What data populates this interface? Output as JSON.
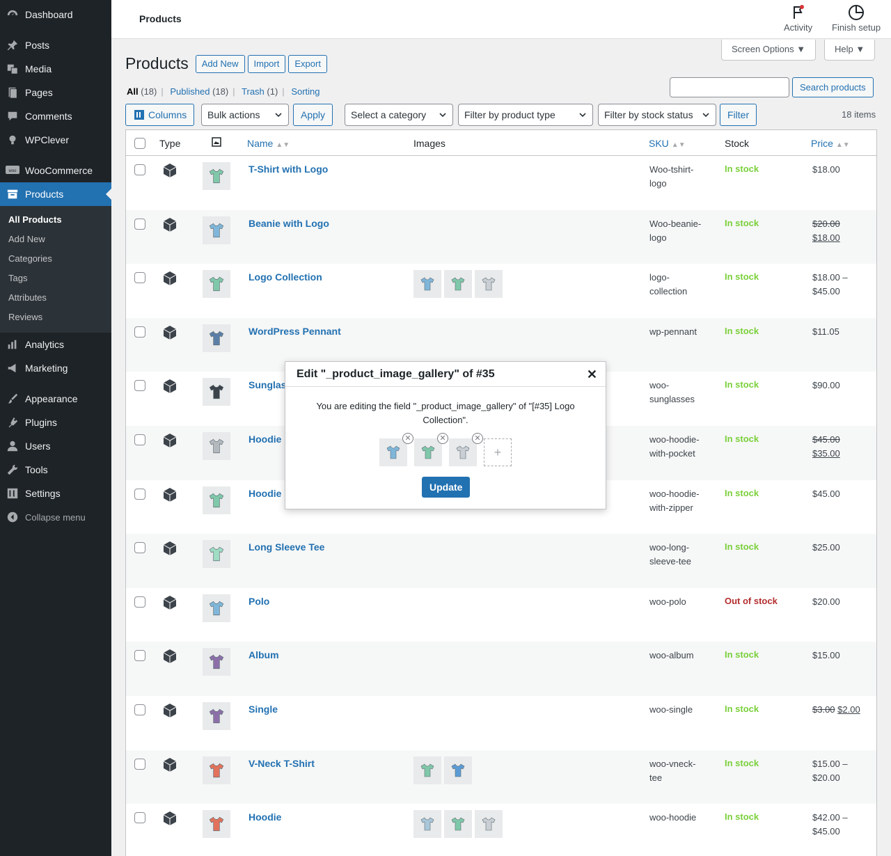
{
  "sidebar": {
    "items_top": [
      {
        "label": "Dashboard",
        "icon": "dashboard-icon"
      },
      {
        "label": "Posts",
        "icon": "pin-icon"
      },
      {
        "label": "Media",
        "icon": "media-icon"
      },
      {
        "label": "Pages",
        "icon": "pages-icon"
      },
      {
        "label": "Comments",
        "icon": "comments-icon"
      },
      {
        "label": "WPClever",
        "icon": "bulb-icon"
      },
      {
        "label": "WooCommerce",
        "icon": "woo-icon"
      },
      {
        "label": "Products",
        "icon": "archive-icon"
      }
    ],
    "submenu": [
      "All Products",
      "Add New",
      "Categories",
      "Tags",
      "Attributes",
      "Reviews"
    ],
    "items_bottom": [
      {
        "label": "Analytics",
        "icon": "chart-icon"
      },
      {
        "label": "Marketing",
        "icon": "megaphone-icon"
      },
      {
        "label": "Appearance",
        "icon": "brush-icon"
      },
      {
        "label": "Plugins",
        "icon": "plug-icon"
      },
      {
        "label": "Users",
        "icon": "user-icon"
      },
      {
        "label": "Tools",
        "icon": "wrench-icon"
      },
      {
        "label": "Settings",
        "icon": "settings-icon"
      }
    ],
    "collapse": "Collapse menu"
  },
  "topbar": {
    "breadcrumb": "Products",
    "activity": "Activity",
    "finish_setup": "Finish setup"
  },
  "screen_options": "Screen Options",
  "help": "Help",
  "heading": {
    "title": "Products",
    "add_new": "Add New",
    "import": "Import",
    "export": "Export"
  },
  "views": {
    "all": "All",
    "all_count": "(18)",
    "published": "Published",
    "published_count": "(18)",
    "trash": "Trash",
    "trash_count": "(1)",
    "sorting": "Sorting"
  },
  "search": {
    "button": "Search products",
    "value": ""
  },
  "filters": {
    "columns": "Columns",
    "bulk_actions": "Bulk actions",
    "apply": "Apply",
    "category": "Select a category",
    "product_type": "Filter by product type",
    "stock_status": "Filter by stock status",
    "filter": "Filter",
    "items_count": "18 items"
  },
  "table": {
    "headers": {
      "type": "Type",
      "name": "Name",
      "images": "Images",
      "sku": "SKU",
      "stock": "Stock",
      "price": "Price"
    },
    "rows": [
      {
        "name": "T-Shirt with Logo",
        "sku1": "Woo-tshirt-",
        "sku2": "logo",
        "stock": "In stock",
        "price1": "$18.00",
        "price2": "",
        "old": "",
        "thumb_color": "#7fc8a9",
        "images": []
      },
      {
        "name": "Beanie with Logo",
        "sku1": "Woo-beanie-",
        "sku2": "logo",
        "stock": "In stock",
        "price1": "",
        "price2": "",
        "old": "$20.00",
        "new": "$18.00",
        "thumb_color": "#7fb6d9",
        "images": []
      },
      {
        "name": "Logo Collection",
        "sku1": "logo-",
        "sku2": "collection",
        "stock": "In stock",
        "price1": "$18.00 –",
        "price2": "$45.00",
        "old": "",
        "thumb_color": "#7fc8a9",
        "images": [
          "#7fb6d9",
          "#7fc8a9",
          "#c9cfd4"
        ]
      },
      {
        "name": "WordPress Pennant",
        "sku1": "wp-pennant",
        "sku2": "",
        "stock": "In stock",
        "price1": "$11.05",
        "price2": "",
        "old": "",
        "thumb_color": "#5b7fa6",
        "images": []
      },
      {
        "name": "Sunglas",
        "sku1": "woo-",
        "sku2": "sunglasses",
        "stock": "In stock",
        "price1": "$90.00",
        "price2": "",
        "old": "",
        "thumb_color": "#3c434a",
        "images": []
      },
      {
        "name": "Hoodie",
        "sku1": "woo-hoodie-",
        "sku2": "with-pocket",
        "stock": "In stock",
        "price1": "",
        "price2": "",
        "old": "$45.00",
        "new": "$35.00",
        "thumb_color": "#b4b9be",
        "images": []
      },
      {
        "name": "Hoodie",
        "sku1": "woo-hoodie-",
        "sku2": "with-zipper",
        "stock": "In stock",
        "price1": "$45.00",
        "price2": "",
        "old": "",
        "thumb_color": "#7fc8a9",
        "images": []
      },
      {
        "name": "Long Sleeve Tee",
        "sku1": "woo-long-",
        "sku2": "sleeve-tee",
        "stock": "In stock",
        "price1": "$25.00",
        "price2": "",
        "old": "",
        "thumb_color": "#9fdcc4",
        "images": []
      },
      {
        "name": "Polo",
        "sku1": "woo-polo",
        "sku2": "",
        "stock": "Out of stock",
        "price1": "$20.00",
        "price2": "",
        "old": "",
        "thumb_color": "#7fb6d9",
        "images": []
      },
      {
        "name": "Album",
        "sku1": "woo-album",
        "sku2": "",
        "stock": "In stock",
        "price1": "$15.00",
        "price2": "",
        "old": "",
        "thumb_color": "#8c6fa8",
        "images": []
      },
      {
        "name": "Single",
        "sku1": "woo-single",
        "sku2": "",
        "stock": "In stock",
        "price1": "",
        "price2": "",
        "old": "$3.00",
        "new": "$2.00",
        "inline": true,
        "thumb_color": "#8c6fa8",
        "images": []
      },
      {
        "name": "V-Neck T-Shirt",
        "sku1": "woo-vneck-",
        "sku2": "tee",
        "stock": "In stock",
        "price1": "$15.00 –",
        "price2": "$20.00",
        "old": "",
        "thumb_color": "#e2725b",
        "images": [
          "#7fc8a9",
          "#5b9bd5"
        ]
      },
      {
        "name": "Hoodie",
        "sku1": "woo-hoodie",
        "sku2": "",
        "stock": "In stock",
        "price1": "$42.00 –",
        "price2": "$45.00",
        "old": "",
        "thumb_color": "#e2725b",
        "images": [
          "#a9c7d9",
          "#7fc8a9",
          "#c9cfd4"
        ]
      }
    ]
  },
  "modal": {
    "title": "Edit \"_product_image_gallery\" of #35",
    "line1": "You are editing the field \"_product_image_gallery\" of \"[#35] Logo",
    "line2": "Collection\".",
    "gallery": [
      "#7fb6d9",
      "#7fc8a9",
      "#c9cfd4"
    ],
    "update": "Update"
  }
}
